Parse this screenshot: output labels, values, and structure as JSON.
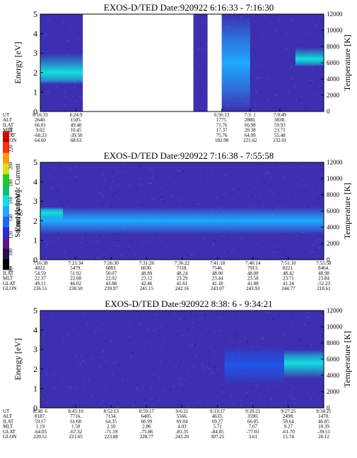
{
  "colors": {
    "background": "#3d2fb0",
    "colormap": [
      "#000000",
      "#2b0f4d",
      "#5a1a8a",
      "#2a2bd0",
      "#1f66ff",
      "#1fa8ff",
      "#12e0e0",
      "#10c070",
      "#20d020",
      "#d8e020",
      "#ff9a10",
      "#ff3010",
      "#ff0000"
    ]
  },
  "colorbar": {
    "label": "Second Harmonic Current",
    "ticks": [
      "80",
      "100",
      "120",
      "140",
      "160",
      "180",
      "200",
      "220",
      "240"
    ],
    "range": [
      80,
      240
    ]
  },
  "chart_data": [
    {
      "type": "heatmap",
      "title": "EXOS-D/TED   Date:920922  6:16:33 - 7:16:30",
      "ylabel": "Energy [eV]",
      "y2label": "Temperature [K]",
      "ylim": [
        0,
        5
      ],
      "y2lim": [
        0,
        12000
      ],
      "yticks": [
        "0",
        "1",
        "2",
        "3",
        "4",
        "5"
      ],
      "y2ticks": [
        "0",
        "2000",
        "4000",
        "6000",
        "8000",
        "10000",
        "12000"
      ],
      "data_gaps": [
        [
          0.15,
          0.54
        ],
        [
          0.59,
          0.64
        ]
      ],
      "intensity_features": [
        {
          "x_range": [
            0.0,
            0.15
          ],
          "energy_range": [
            1.4,
            3.0
          ],
          "peak_energy": 2.0,
          "level": "high"
        },
        {
          "x_range": [
            0.64,
            0.74
          ],
          "energy_range": [
            0.0,
            5.0
          ],
          "peak_energy": 2.5,
          "level": "medium"
        },
        {
          "x_range": [
            0.9,
            1.0
          ],
          "energy_range": [
            2.3,
            3.3
          ],
          "peak_energy": 2.7,
          "level": "high"
        }
      ],
      "table": {
        "row_labels": [
          "UT",
          "ALT",
          "ILAT",
          "MLT",
          "GLAT",
          "GLON"
        ],
        "columns": [
          {
            "values": [
              "6:16:33",
              "2640.",
              "66.01",
              "9.02",
              "-60.33",
              "64.60"
            ]
          },
          {
            "values": [
              "6:24:9",
              "1505.",
              "49.40",
              "10.45",
              "-39.50",
              "68.63"
            ]
          },
          {
            "values": [
              "6:56:13",
              "1775.",
              "71.76",
              "17.37",
              "75.76",
              "182.98"
            ]
          },
          {
            "values": [
              "7:3: 1",
              "2800.",
              "66.98",
              "20.38",
              "64.99",
              "221.62"
            ]
          },
          {
            "values": [
              "7:9:49",
              "3838.",
              "59.93",
              "21.71",
              "55.48",
              "232.01"
            ]
          }
        ]
      }
    },
    {
      "type": "heatmap",
      "title": "EXOS-D/TED   Date:920922  7:16:38 - 7:55:58",
      "ylabel": "Energy [eV]",
      "y2label": "Temperature [K]",
      "ylim": [
        0,
        5
      ],
      "y2lim": [
        0,
        12000
      ],
      "yticks": [
        "0",
        "1",
        "2",
        "3",
        "4",
        "5"
      ],
      "y2ticks": [
        "0",
        "2000",
        "4000",
        "6000",
        "8000",
        "10000",
        "12000"
      ],
      "intensity_features": [
        {
          "x_range": [
            0.0,
            1.0
          ],
          "energy_range": [
            1.3,
            2.7
          ],
          "peak_energy": 2.0,
          "level": "medium"
        },
        {
          "x_range": [
            0.0,
            0.08
          ],
          "energy_range": [
            2.0,
            2.7
          ],
          "peak_energy": 2.4,
          "level": "high"
        }
      ],
      "table": {
        "row_labels": [
          "UT",
          "ALT",
          "ILAT",
          "MLT",
          "GLAT",
          "GLON"
        ],
        "columns": [
          {
            "values": [
              "7:16:38",
              "4822.",
              "54.59",
              "22.37",
              "49.11",
              "236.51"
            ]
          },
          {
            "values": [
              "7:21:34",
              "5479.",
              "51.92",
              "22.68",
              "46.02",
              "238.50"
            ]
          },
          {
            "values": [
              "7:26:30",
              "6083.",
              "50.07",
              "22.92",
              "43.88",
              "239.97"
            ]
          },
          {
            "values": [
              "7:31:26",
              "6630.",
              "48.89",
              "23.12",
              "42.46",
              "241.15"
            ]
          },
          {
            "values": [
              "7:36:22",
              "7118.",
              "48.24",
              "23.29",
              "41.61",
              "242.16"
            ]
          },
          {
            "values": [
              "7:41:18",
              "7546.",
              "48.00",
              "23.44",
              "41.18",
              "243.07"
            ]
          },
          {
            "values": [
              "7:46:14",
              "7913.",
              "48.08",
              "23.58",
              "41.08",
              "243.93"
            ]
          },
          {
            "values": [
              "7:51:10",
              "8221.",
              "48.42",
              "23.71",
              "41.24",
              "244.77"
            ]
          },
          {
            "values": [
              "7:55:58",
              "8464.",
              "48.98",
              "23.84",
              "-52.23",
              "218.61"
            ]
          }
        ]
      }
    },
    {
      "type": "heatmap",
      "title": "EXOS-D/TED   Date:920922  8:38: 6 - 9:34:21",
      "ylabel": "Energy [eV]",
      "y2label": "Temperature [K]",
      "ylim": [
        0,
        5
      ],
      "y2lim": [
        0,
        12000
      ],
      "yticks": [
        "0",
        "1",
        "2",
        "3",
        "4",
        "5"
      ],
      "y2ticks": [
        "0",
        "2000",
        "4000",
        "6000",
        "8000",
        "10000",
        "12000"
      ],
      "intensity_features": [
        {
          "x_range": [
            0.86,
            1.0
          ],
          "energy_range": [
            1.5,
            3.0
          ],
          "peak_energy": 2.3,
          "level": "high"
        },
        {
          "x_range": [
            0.65,
            0.86
          ],
          "energy_range": [
            1.2,
            3.2
          ],
          "peak_energy": 2.2,
          "level": "low"
        }
      ],
      "table": {
        "row_labels": [
          "UT",
          "ALT",
          "ILAT",
          "MLT",
          "GLAT",
          "GLON"
        ],
        "columns": [
          {
            "values": [
              "8:38: 6",
              "8187.",
              "59.17",
              "1.19",
              "-64.05",
              "220.51"
            ]
          },
          {
            "values": [
              "8:45:10",
              "7716.",
              "61.68",
              "1.58",
              "-67.32",
              "221.65"
            ]
          },
          {
            "values": [
              "8:52:13",
              "7134.",
              "64.35",
              "2.10",
              "-71.19",
              "223.88"
            ]
          },
          {
            "values": [
              "8:59:17",
              "6405.",
              "66.99",
              "2.86",
              "-75.86",
              "228.77"
            ]
          },
          {
            "values": [
              "9:6:21",
              "5566.",
              "69.04",
              "4.03",
              "-81.35",
              "243.20"
            ]
          },
          {
            "values": [
              "9:13:17",
              "4633.",
              "69.27",
              "5.71",
              "-84.85",
              "307.25"
            ]
          },
          {
            "values": [
              "9:20:21",
              "3590.",
              "66.05",
              "7.67",
              "-77.01",
              "3.61"
            ]
          },
          {
            "values": [
              "9:27:25",
              "2498.",
              "58.64",
              "9.27",
              "-61.70",
              "15.74"
            ]
          },
          {
            "values": [
              "9:34:21",
              "1470.",
              "46.85",
              "10.39",
              "-39.51",
              "20.12"
            ]
          }
        ]
      }
    }
  ]
}
